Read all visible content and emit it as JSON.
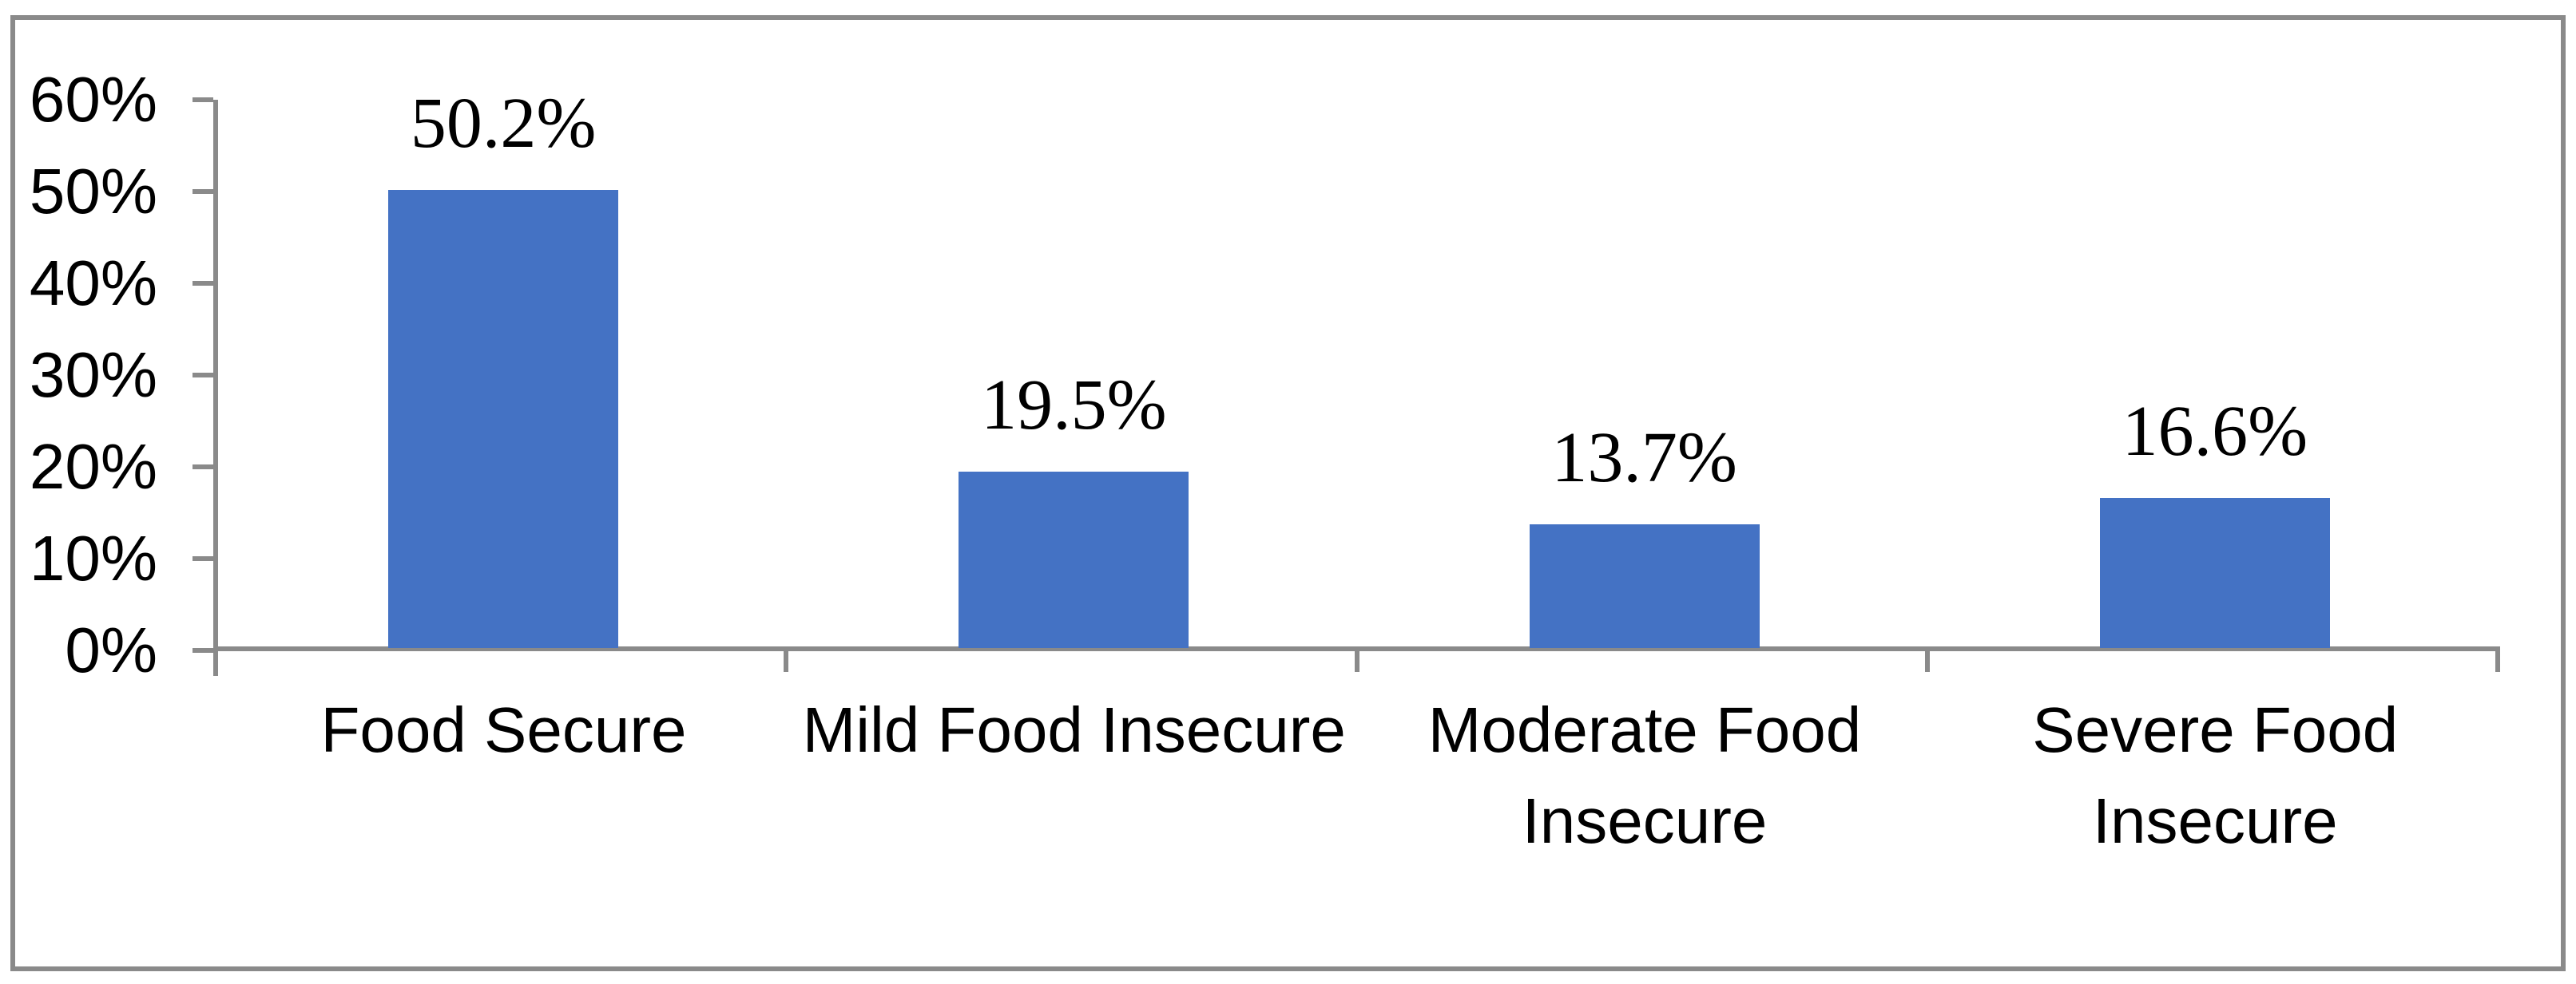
{
  "chart_data": {
    "type": "bar",
    "title": "",
    "xlabel": "",
    "ylabel": "",
    "categories": [
      "Food Secure",
      "Mild Food Insecure",
      "Moderate Food Insecure",
      "Severe Food Insecure"
    ],
    "values": [
      50.2,
      19.5,
      13.7,
      16.6
    ],
    "data_labels": [
      "50.2%",
      "19.5%",
      "13.7%",
      "16.6%"
    ],
    "y_ticks": [
      "60%",
      "50%",
      "40%",
      "30%",
      "20%",
      "10%",
      "0%"
    ],
    "ylim": [
      0,
      60
    ],
    "y_step": 10,
    "grid": false,
    "legend": "none",
    "data_label_position": "above-bar",
    "colors": {
      "bar": "#4472C4",
      "axis": "#8A8A8A",
      "frame": "#8A8A8A",
      "text": "#000000"
    }
  }
}
